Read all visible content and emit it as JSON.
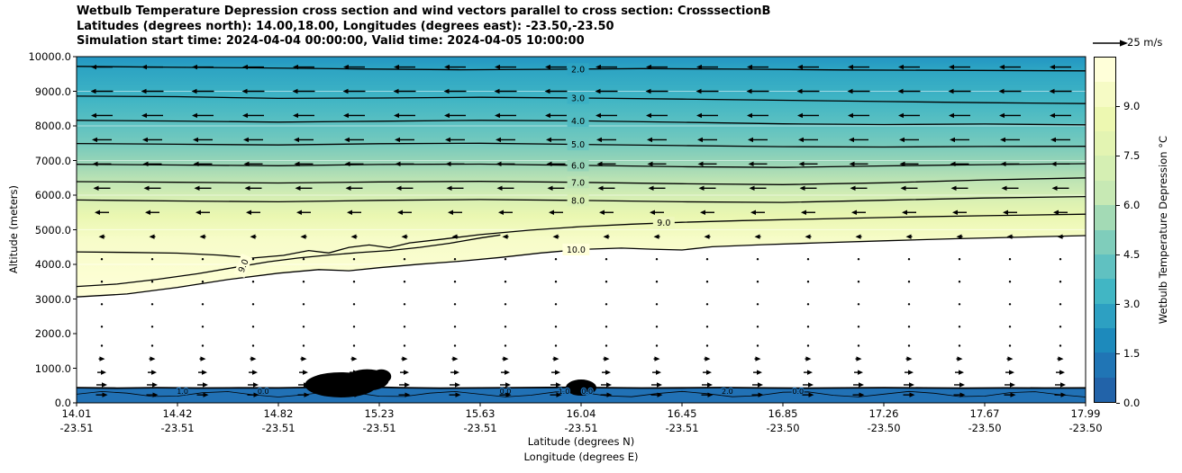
{
  "title": {
    "line1": "Wetbulb Temperature Depression cross section and wind vectors parallel to cross section: CrosssectionB",
    "line2": "Latitudes (degrees north): 14.00,18.00, Longitudes (degrees east): -23.50,-23.50",
    "line3": "Simulation start time: 2024-04-04 00:00:00, Valid time: 2024-04-05 10:00:00"
  },
  "quiver_key": {
    "label": "25 m/s"
  },
  "chart_data": {
    "type": "contour",
    "title": "Wetbulb Temperature Depression cross section and wind vectors parallel to cross section: CrosssectionB",
    "x_axis": {
      "label_line1": "Latitude (degrees N)",
      "label_line2": "Longitude (degrees E)",
      "tick_lat": [
        "14.01",
        "14.42",
        "14.82",
        "15.23",
        "15.63",
        "16.04",
        "16.45",
        "16.85",
        "17.26",
        "17.67",
        "17.99"
      ],
      "tick_lon": [
        "-23.51",
        "-23.51",
        "-23.51",
        "-23.51",
        "-23.51",
        "-23.51",
        "-23.51",
        "-23.50",
        "-23.50",
        "-23.50",
        "-23.50"
      ],
      "range_lat": [
        14.01,
        17.99
      ]
    },
    "y_axis": {
      "label": "Altitude (meters)",
      "ticks": [
        "0.0",
        "1000.0",
        "2000.0",
        "3000.0",
        "4000.0",
        "5000.0",
        "6000.0",
        "7000.0",
        "8000.0",
        "9000.0",
        "10000.0"
      ],
      "range": [
        0,
        10000
      ]
    },
    "colorbar": {
      "label": "Wetbulb Temperature Depression °C",
      "ticks": [
        "0.0",
        "1.5",
        "3.0",
        "4.5",
        "6.0",
        "7.5",
        "9.0"
      ],
      "range": [
        0,
        10.5
      ],
      "band_colors": [
        "#2263a9",
        "#2075b5",
        "#1d8abc",
        "#2da0c2",
        "#41b6c4",
        "#60c1c1",
        "#7fcdbb",
        "#a3dab5",
        "#c7e9b4",
        "#d5efb3",
        "#e3f4b2",
        "#edf8b1",
        "#f6fbc5",
        "#ffffd9"
      ]
    },
    "fill_gradient": [
      {
        "alt": 10000,
        "color": "#2295c3"
      },
      {
        "alt": 9650,
        "color": "#2da4c3"
      },
      {
        "alt": 8800,
        "color": "#3fb4c4"
      },
      {
        "alt": 8150,
        "color": "#58bfc2"
      },
      {
        "alt": 7480,
        "color": "#76cabd"
      },
      {
        "alt": 6880,
        "color": "#9cd6b6"
      },
      {
        "alt": 6380,
        "color": "#c0e5b4"
      },
      {
        "alt": 5850,
        "color": "#d9f0b3"
      },
      {
        "alt": 5400,
        "color": "#eaf7b1"
      },
      {
        "alt": 4700,
        "color": "#f7fcc9"
      },
      {
        "alt": 3000,
        "color": "#ffffd9"
      }
    ],
    "contours": [
      {
        "level": "2.0",
        "label_bg": "#2da4c3",
        "labels": [
          [
            0.497,
            9640,
            0
          ]
        ],
        "pts": [
          [
            0,
            9720
          ],
          [
            0.08,
            9700
          ],
          [
            0.18,
            9675
          ],
          [
            0.28,
            9645
          ],
          [
            0.38,
            9620
          ],
          [
            0.46,
            9635
          ],
          [
            0.56,
            9655
          ],
          [
            0.66,
            9640
          ],
          [
            0.76,
            9615
          ],
          [
            0.86,
            9605
          ],
          [
            1,
            9590
          ]
        ]
      },
      {
        "level": "3.0",
        "label_bg": "#3cb1c4",
        "labels": [
          [
            0.497,
            8805,
            0
          ]
        ],
        "pts": [
          [
            0,
            8860
          ],
          [
            0.1,
            8845
          ],
          [
            0.2,
            8795
          ],
          [
            0.3,
            8805
          ],
          [
            0.4,
            8825
          ],
          [
            0.5,
            8805
          ],
          [
            0.6,
            8775
          ],
          [
            0.7,
            8740
          ],
          [
            0.8,
            8705
          ],
          [
            0.9,
            8670
          ],
          [
            1,
            8645
          ]
        ]
      },
      {
        "level": "4.0",
        "label_bg": "#52bcc2",
        "labels": [
          [
            0.497,
            8145,
            0
          ]
        ],
        "pts": [
          [
            0,
            8160
          ],
          [
            0.1,
            8140
          ],
          [
            0.2,
            8110
          ],
          [
            0.3,
            8135
          ],
          [
            0.4,
            8160
          ],
          [
            0.5,
            8145
          ],
          [
            0.6,
            8105
          ],
          [
            0.7,
            8060
          ],
          [
            0.8,
            8040
          ],
          [
            0.9,
            8055
          ],
          [
            1,
            8030
          ]
        ]
      },
      {
        "level": "5.0",
        "label_bg": "#6fc7bf",
        "labels": [
          [
            0.497,
            7465,
            0
          ]
        ],
        "pts": [
          [
            0,
            7490
          ],
          [
            0.1,
            7470
          ],
          [
            0.2,
            7450
          ],
          [
            0.3,
            7485
          ],
          [
            0.4,
            7500
          ],
          [
            0.5,
            7465
          ],
          [
            0.6,
            7430
          ],
          [
            0.7,
            7400
          ],
          [
            0.8,
            7390
          ],
          [
            0.9,
            7405
          ],
          [
            1,
            7410
          ]
        ]
      },
      {
        "level": "6.0",
        "label_bg": "#96d4b7",
        "labels": [
          [
            0.497,
            6860,
            0
          ]
        ],
        "pts": [
          [
            0,
            6890
          ],
          [
            0.1,
            6870
          ],
          [
            0.2,
            6850
          ],
          [
            0.3,
            6885
          ],
          [
            0.4,
            6895
          ],
          [
            0.5,
            6860
          ],
          [
            0.6,
            6820
          ],
          [
            0.7,
            6800
          ],
          [
            0.8,
            6845
          ],
          [
            0.9,
            6880
          ],
          [
            1,
            6910
          ]
        ]
      },
      {
        "level": "7.0",
        "label_bg": "#bce3b4",
        "labels": [
          [
            0.497,
            6370,
            0
          ]
        ],
        "pts": [
          [
            0,
            6390
          ],
          [
            0.1,
            6372
          ],
          [
            0.2,
            6350
          ],
          [
            0.3,
            6382
          ],
          [
            0.4,
            6398
          ],
          [
            0.5,
            6368
          ],
          [
            0.6,
            6330
          ],
          [
            0.7,
            6305
          ],
          [
            0.8,
            6355
          ],
          [
            0.9,
            6440
          ],
          [
            1,
            6500
          ]
        ]
      },
      {
        "level": "8.0",
        "label_bg": "#d9f0b3",
        "labels": [
          [
            0.497,
            5850,
            0
          ]
        ],
        "pts": [
          [
            0,
            5860
          ],
          [
            0.1,
            5830
          ],
          [
            0.2,
            5808
          ],
          [
            0.3,
            5850
          ],
          [
            0.4,
            5872
          ],
          [
            0.5,
            5848
          ],
          [
            0.6,
            5808
          ],
          [
            0.7,
            5790
          ],
          [
            0.8,
            5852
          ],
          [
            0.9,
            5918
          ],
          [
            1,
            5958
          ]
        ]
      },
      {
        "level": "9.0",
        "label_bg": "#eef8bc",
        "labels": [
          [
            0.582,
            5205,
            0
          ]
        ],
        "pts": [
          [
            0,
            4360
          ],
          [
            0.05,
            4345
          ],
          [
            0.1,
            4325
          ],
          [
            0.14,
            4270
          ],
          [
            0.175,
            4185
          ],
          [
            0.205,
            4260
          ],
          [
            0.23,
            4400
          ],
          [
            0.25,
            4330
          ],
          [
            0.27,
            4490
          ],
          [
            0.29,
            4560
          ],
          [
            0.31,
            4480
          ],
          [
            0.33,
            4620
          ],
          [
            0.36,
            4720
          ],
          [
            0.4,
            4860
          ],
          [
            0.45,
            4990
          ],
          [
            0.5,
            5090
          ],
          [
            0.55,
            5160
          ],
          [
            0.6,
            5215
          ],
          [
            0.66,
            5265
          ],
          [
            0.73,
            5310
          ],
          [
            0.81,
            5360
          ],
          [
            0.9,
            5405
          ],
          [
            1,
            5450
          ]
        ]
      },
      {
        "level": "9.0",
        "label_bg": "#ffffd9",
        "labels": [
          [
            0.165,
            3960,
            -68
          ]
        ],
        "pts": [
          [
            0,
            3360
          ],
          [
            0.04,
            3430
          ],
          [
            0.08,
            3570
          ],
          [
            0.12,
            3730
          ],
          [
            0.155,
            3905
          ],
          [
            0.19,
            4075
          ],
          [
            0.22,
            4185
          ],
          [
            0.25,
            4270
          ],
          [
            0.28,
            4340
          ],
          [
            0.31,
            4400
          ],
          [
            0.34,
            4490
          ],
          [
            0.37,
            4610
          ],
          [
            0.4,
            4760
          ],
          [
            0.42,
            4850
          ]
        ]
      },
      {
        "level": "10.0",
        "label_bg": "#ffffd9",
        "labels": [
          [
            0.495,
            4430,
            0
          ]
        ],
        "pts": [
          [
            0,
            3060
          ],
          [
            0.05,
            3145
          ],
          [
            0.1,
            3335
          ],
          [
            0.15,
            3560
          ],
          [
            0.2,
            3745
          ],
          [
            0.24,
            3850
          ],
          [
            0.27,
            3815
          ],
          [
            0.3,
            3905
          ],
          [
            0.34,
            4005
          ],
          [
            0.38,
            4090
          ],
          [
            0.42,
            4200
          ],
          [
            0.46,
            4330
          ],
          [
            0.5,
            4430
          ],
          [
            0.54,
            4470
          ],
          [
            0.57,
            4440
          ],
          [
            0.6,
            4415
          ],
          [
            0.63,
            4510
          ],
          [
            0.68,
            4570
          ],
          [
            0.74,
            4625
          ],
          [
            0.8,
            4680
          ],
          [
            0.87,
            4740
          ],
          [
            0.94,
            4790
          ],
          [
            1,
            4830
          ]
        ]
      }
    ],
    "surface_band": {
      "color": "#2171b5",
      "top_pts": [
        [
          0,
          440
        ],
        [
          0.04,
          425
        ],
        [
          0.08,
          438
        ],
        [
          0.12,
          428
        ],
        [
          0.16,
          435
        ],
        [
          0.2,
          430
        ],
        [
          0.23,
          445
        ],
        [
          0.26,
          470
        ],
        [
          0.29,
          460
        ],
        [
          0.32,
          440
        ],
        [
          0.36,
          425
        ],
        [
          0.4,
          432
        ],
        [
          0.44,
          440
        ],
        [
          0.48,
          448
        ],
        [
          0.52,
          438
        ],
        [
          0.56,
          428
        ],
        [
          0.6,
          435
        ],
        [
          0.64,
          442
        ],
        [
          0.68,
          430
        ],
        [
          0.72,
          425
        ],
        [
          0.76,
          432
        ],
        [
          0.8,
          438
        ],
        [
          0.84,
          430
        ],
        [
          0.88,
          426
        ],
        [
          0.92,
          432
        ],
        [
          0.96,
          428
        ],
        [
          1,
          432
        ]
      ],
      "inner_line_alt": 250,
      "blobs": [
        [
          0.262,
          520,
          40,
          14
        ],
        [
          0.288,
          660,
          24,
          12
        ],
        [
          0.302,
          760,
          11,
          8
        ],
        [
          0.5,
          440,
          17,
          9
        ]
      ],
      "labels": [
        [
          "1.0",
          0.105
        ],
        [
          "0.0",
          0.185
        ],
        [
          "0.0",
          0.425
        ],
        [
          "1.0",
          0.483
        ],
        [
          "0.0",
          0.506
        ],
        [
          "2.0",
          0.645
        ],
        [
          "0.0",
          0.715
        ]
      ]
    },
    "wind": {
      "columns": 20,
      "key_label": "25 m/s",
      "rows": [
        {
          "alt": 9700,
          "dir": -1,
          "len": 24
        },
        {
          "alt": 9000,
          "dir": -1,
          "len": 25
        },
        {
          "alt": 8300,
          "dir": -1,
          "len": 24
        },
        {
          "alt": 7600,
          "dir": -1,
          "len": 22
        },
        {
          "alt": 6900,
          "dir": -1,
          "len": 21
        },
        {
          "alt": 6200,
          "dir": -1,
          "len": 19
        },
        {
          "alt": 5500,
          "dir": -1,
          "len": 16
        },
        {
          "alt": 4800,
          "dir": -1,
          "len": 7
        },
        {
          "alt": 4150,
          "dir": 0,
          "len": 0
        },
        {
          "alt": 3500,
          "dir": 0,
          "len": 0
        },
        {
          "alt": 2850,
          "dir": 0,
          "len": 0
        },
        {
          "alt": 2200,
          "dir": 0,
          "len": 0
        },
        {
          "alt": 1650,
          "dir": 0,
          "len": 0
        },
        {
          "alt": 1270,
          "dir": 1,
          "len": 7
        },
        {
          "alt": 880,
          "dir": 1,
          "len": 10
        },
        {
          "alt": 520,
          "dir": 1,
          "len": 12
        },
        {
          "alt": 230,
          "dir": 1,
          "len": 13
        }
      ]
    }
  }
}
